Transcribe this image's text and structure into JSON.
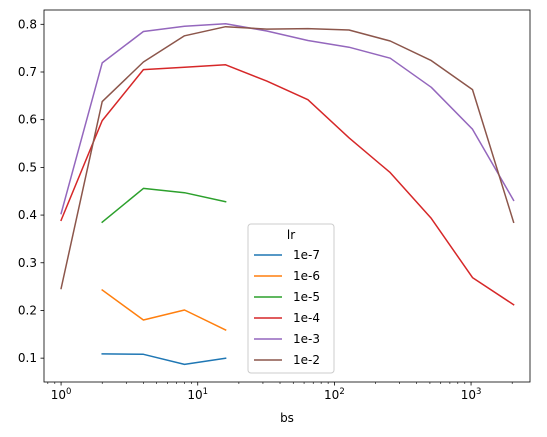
{
  "chart_data": {
    "type": "line",
    "title": "",
    "xlabel": "bs",
    "ylabel": "",
    "xscale": "log",
    "xlim": [
      0.75,
      2700
    ],
    "ylim": [
      0.05,
      0.83
    ],
    "grid": false,
    "xticks": [
      {
        "value": 1,
        "label": "10",
        "sup": "0"
      },
      {
        "value": 10,
        "label": "10",
        "sup": "1"
      },
      {
        "value": 100,
        "label": "10",
        "sup": "2"
      },
      {
        "value": 1000,
        "label": "10",
        "sup": "3"
      }
    ],
    "yticks": [
      0.1,
      0.2,
      0.3,
      0.4,
      0.5,
      0.6,
      0.7,
      0.8
    ],
    "yticklabels": [
      "0.1",
      "0.2",
      "0.3",
      "0.4",
      "0.5",
      "0.6",
      "0.7",
      "0.8"
    ],
    "legend": {
      "title": "lr",
      "placement": "lower center"
    },
    "series": [
      {
        "name": "1e-7",
        "color": "#1f77b4",
        "x": [
          2,
          4,
          8,
          16
        ],
        "y": [
          0.109,
          0.108,
          0.087,
          0.1
        ]
      },
      {
        "name": "1e-6",
        "color": "#ff7f0e",
        "x": [
          2,
          4,
          8,
          16
        ],
        "y": [
          0.243,
          0.18,
          0.201,
          0.159
        ]
      },
      {
        "name": "1e-5",
        "color": "#2ca02c",
        "x": [
          2,
          4,
          8,
          16
        ],
        "y": [
          0.385,
          0.456,
          0.447,
          0.428
        ]
      },
      {
        "name": "1e-4",
        "color": "#d62728",
        "x": [
          1,
          2,
          4,
          8,
          16,
          32,
          64,
          128,
          256,
          512,
          1024,
          2048
        ],
        "y": [
          0.389,
          0.598,
          0.705,
          0.71,
          0.715,
          0.681,
          0.642,
          0.562,
          0.489,
          0.393,
          0.269,
          0.212
        ]
      },
      {
        "name": "1e-3",
        "color": "#9467bd",
        "x": [
          1,
          2,
          4,
          8,
          16,
          32,
          64,
          128,
          256,
          512,
          1024,
          2048
        ],
        "y": [
          0.403,
          0.719,
          0.785,
          0.796,
          0.801,
          0.786,
          0.766,
          0.752,
          0.729,
          0.668,
          0.58,
          0.431
        ]
      },
      {
        "name": "1e-2",
        "color": "#8c564b",
        "x": [
          1,
          2,
          4,
          8,
          16,
          32,
          64,
          128,
          256,
          512,
          1024,
          2048
        ],
        "y": [
          0.246,
          0.638,
          0.721,
          0.776,
          0.795,
          0.79,
          0.791,
          0.788,
          0.765,
          0.724,
          0.663,
          0.385
        ]
      }
    ]
  }
}
